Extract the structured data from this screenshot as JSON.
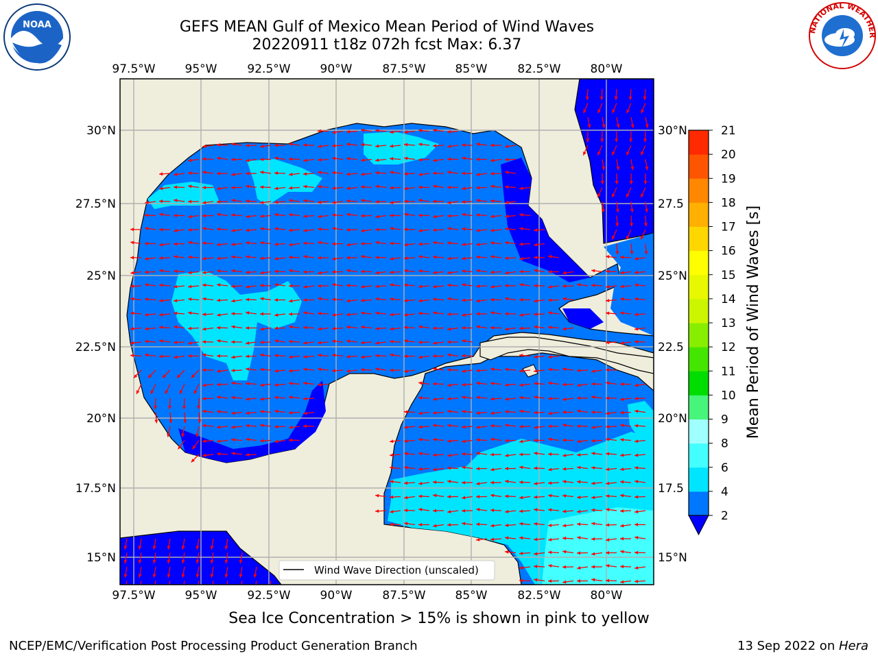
{
  "title": {
    "line1": "GEFS MEAN Gulf of Mexico Mean Period of Wind Waves",
    "line2": "20220911 t18z 072h fcst   Max: 6.37"
  },
  "map": {
    "lon_labels": [
      "97.5°W",
      "95°W",
      "92.5°W",
      "90°W",
      "87.5°W",
      "85°W",
      "82.5°W",
      "80°W"
    ],
    "lat_labels_left": [
      "30°N",
      "27.5°N",
      "25°N",
      "22.5°N",
      "20°N",
      "17.5°N",
      "15°N"
    ],
    "lat_labels_right": [
      "30°N",
      "27.5",
      "25°N",
      "22.5",
      "20°N",
      "17.5",
      "15°N"
    ],
    "legend_label": "Wind Wave Direction (unscaled)",
    "land_color": "#efeddc",
    "arrow_color": "#ff0000"
  },
  "colorbar": {
    "label": "Mean Period of Wind Waves [s]",
    "ticks": [
      "2",
      "4",
      "6",
      "8",
      "9",
      "10",
      "11",
      "12",
      "13",
      "14",
      "15",
      "16",
      "17",
      "18",
      "19",
      "20",
      "21"
    ],
    "colors": [
      "#0000ff",
      "#0077ff",
      "#00e5ff",
      "#44ffff",
      "#a0ffff",
      "#46f57a",
      "#00dd00",
      "#44e600",
      "#88ee00",
      "#ccf500",
      "#e8f800",
      "#ffff00",
      "#ffd700",
      "#ffb000",
      "#ff8800",
      "#ff5500",
      "#ff2a00",
      "#ff0000"
    ]
  },
  "footnote": "Sea Ice Concentration > 15% is shown in pink to yellow",
  "credits": {
    "left": "NCEP/EMC/Verification Post Processing Product Generation Branch",
    "right_prefix": "13 Sep 2022 on ",
    "right_host": "Hera"
  },
  "logos": {
    "noaa_text": "NOAA",
    "nws_text": "NATIONAL WEATHER SERVICE"
  }
}
